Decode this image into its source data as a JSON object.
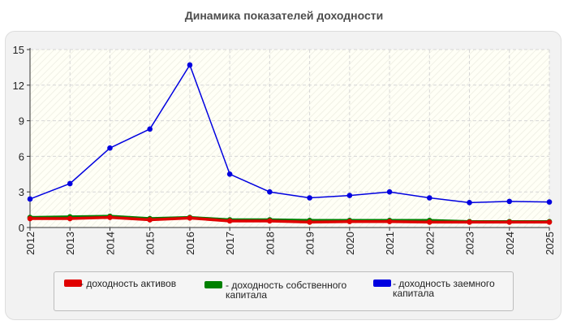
{
  "chart_title": "Динамика показателей доходности",
  "legend": [
    {
      "label": "- доходность активов",
      "color": "#e00000"
    },
    {
      "label": "- доходность собственного капитала",
      "color": "#008000"
    },
    {
      "label": "- доходность заемного капитала",
      "color": "#0000e0"
    }
  ],
  "chart_data": {
    "type": "line",
    "title": "Динамика показателей доходности",
    "xlabel": "",
    "ylabel": "",
    "x": [
      "2012",
      "2013",
      "2014",
      "2015",
      "2016",
      "2017",
      "2018",
      "2019",
      "2020",
      "2021",
      "2022",
      "2023",
      "2024",
      "2025"
    ],
    "ylim": [
      0,
      15
    ],
    "yticks": [
      0,
      3,
      6,
      9,
      12,
      15
    ],
    "grid": true,
    "legend_position": "bottom",
    "series": [
      {
        "name": "- доходность активов",
        "color": "#e00000",
        "values": [
          0.75,
          0.75,
          0.85,
          0.65,
          0.8,
          0.55,
          0.55,
          0.45,
          0.5,
          0.5,
          0.45,
          0.45,
          0.45,
          0.45
        ]
      },
      {
        "name": "- доходность собственного капитала",
        "color": "#008000",
        "values": [
          0.85,
          0.9,
          0.95,
          0.75,
          0.85,
          0.65,
          0.65,
          0.6,
          0.6,
          0.6,
          0.6,
          0.5,
          0.5,
          0.5
        ]
      },
      {
        "name": "- доходность заемного капитала",
        "color": "#0000e0",
        "values": [
          2.4,
          3.7,
          6.7,
          8.3,
          13.7,
          4.5,
          3.0,
          2.5,
          2.7,
          3.0,
          2.5,
          2.1,
          2.2,
          2.15
        ]
      }
    ]
  }
}
